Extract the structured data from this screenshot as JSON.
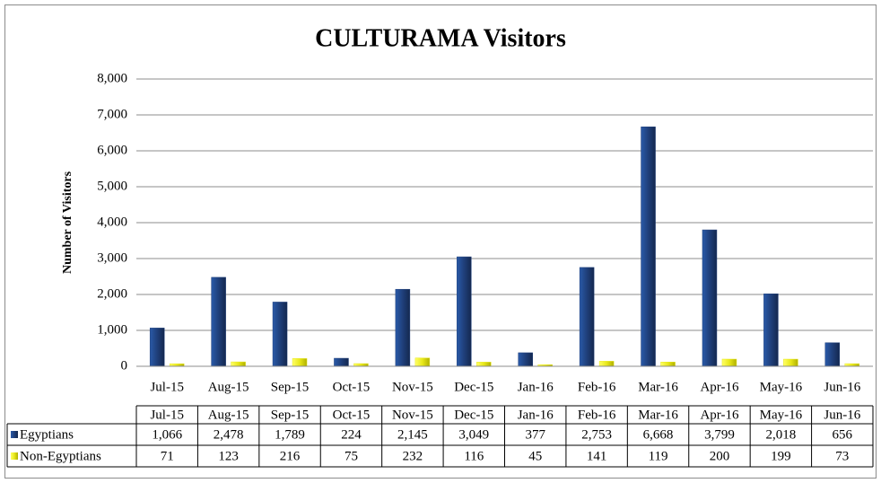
{
  "chart_data": {
    "type": "bar",
    "title": "CULTURAMA Visitors",
    "y_label": "Number of Visitors",
    "categories": [
      "Jul-15",
      "Aug-15",
      "Sep-15",
      "Oct-15",
      "Nov-15",
      "Dec-15",
      "Jan-16",
      "Feb-16",
      "Mar-16",
      "Apr-16",
      "May-16",
      "Jun-16"
    ],
    "series": [
      {
        "name": "Egyptians",
        "color": "#1f3f7a",
        "values": [
          1066,
          2478,
          1789,
          224,
          2145,
          3049,
          377,
          2753,
          6668,
          3799,
          2018,
          656
        ],
        "value_labels": [
          "1,066",
          "2,478",
          "1,789",
          "224",
          "2,145",
          "3,049",
          "377",
          "2,753",
          "6,668",
          "3,799",
          "2,018",
          "656"
        ]
      },
      {
        "name": "Non-Egyptians",
        "color": "#e8e81a",
        "values": [
          71,
          123,
          216,
          75,
          232,
          116,
          45,
          141,
          119,
          200,
          199,
          73
        ],
        "value_labels": [
          "71",
          "123",
          "216",
          "75",
          "232",
          "116",
          "45",
          "141",
          "119",
          "200",
          "199",
          "73"
        ]
      }
    ],
    "ylim": [
      0,
      8000
    ],
    "yticks": [
      0,
      {
        "value": 1000,
        "label": "1,000"
      },
      {
        "value": 2000,
        "label": "2,000"
      },
      {
        "value": 3000,
        "label": "3,000"
      },
      {
        "value": 4000,
        "label": "4,000"
      },
      {
        "value": 5000,
        "label": "5,000"
      },
      {
        "value": 6000,
        "label": "6,000"
      },
      {
        "value": 7000,
        "label": "7,000"
      },
      {
        "value": 8000,
        "label": "8,000"
      }
    ],
    "grid": true
  }
}
